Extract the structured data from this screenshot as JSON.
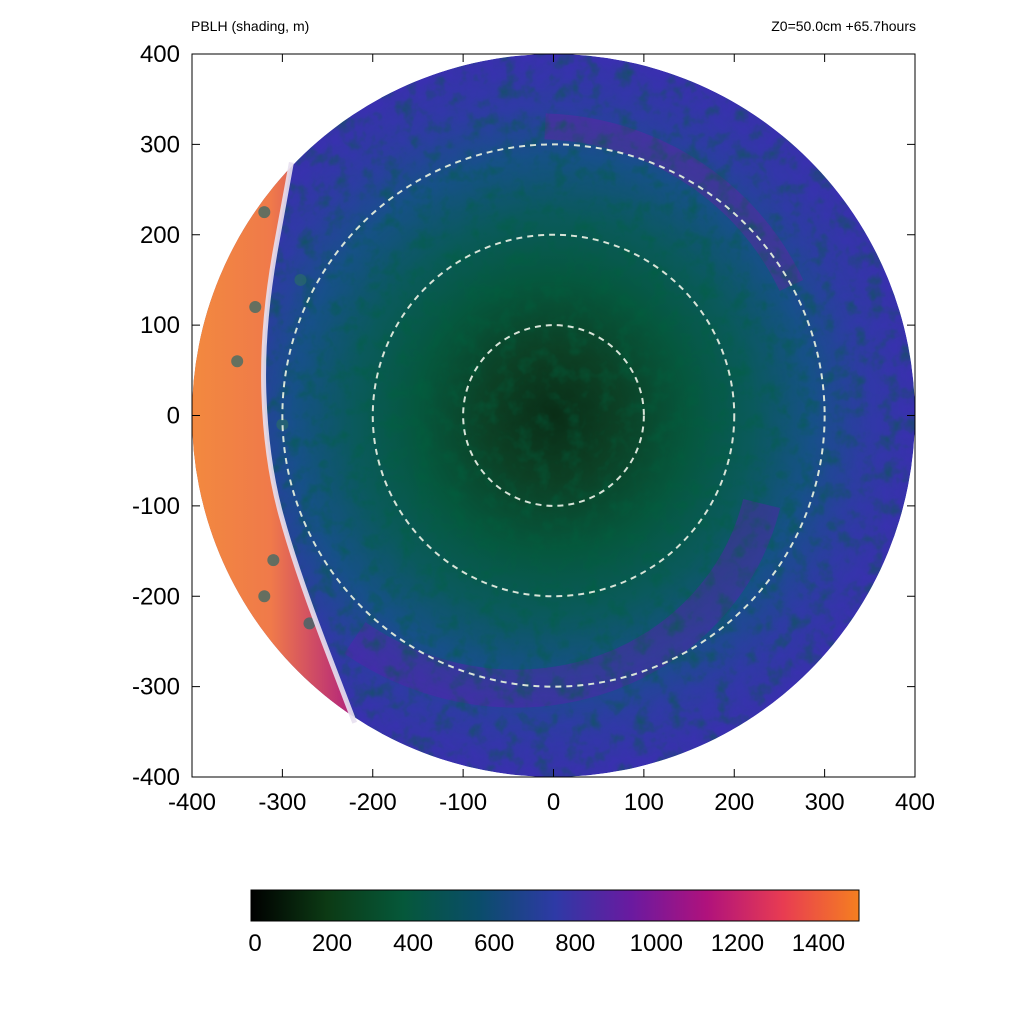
{
  "header": {
    "left_title": "PBLH (shading, m)",
    "right_title": "Z0=50.0cm  +65.7hours"
  },
  "chart_data": {
    "type": "heatmap",
    "title": "PBLH (shading, m)",
    "subtitle": "Z0=50.0cm  +65.7hours",
    "xlabel": "",
    "ylabel": "",
    "xlim": [
      -400,
      400
    ],
    "ylim": [
      -400,
      400
    ],
    "x_ticks": [
      -400,
      -300,
      -200,
      -100,
      0,
      100,
      200,
      300,
      400
    ],
    "y_ticks": [
      400,
      300,
      200,
      100,
      0,
      -100,
      -200,
      -300,
      -400
    ],
    "domain_radius": 400,
    "reference_circles_radii": [
      100,
      200,
      300
    ],
    "colorbar": {
      "min": 0,
      "max": 1500,
      "ticks": [
        0,
        200,
        400,
        600,
        800,
        1000,
        1200,
        1400
      ],
      "colors": [
        "#000000",
        "#0c3a14",
        "#05583a",
        "#0a4d6a",
        "#2e3aa6",
        "#6a1aa0",
        "#b0127c",
        "#e83c52",
        "#f57f20"
      ]
    },
    "features": {
      "front_line": {
        "color": "#e8e0f0",
        "description_points": [
          [
            -290,
            280
          ],
          [
            -323,
            100
          ],
          [
            -318,
            -50
          ],
          [
            -285,
            -170
          ],
          [
            -220,
            -340
          ]
        ]
      },
      "region_west_of_front_pblh": 1400,
      "core_pblh": 300,
      "inner_pblh": 550,
      "outer_band_pblh": 1000
    }
  }
}
